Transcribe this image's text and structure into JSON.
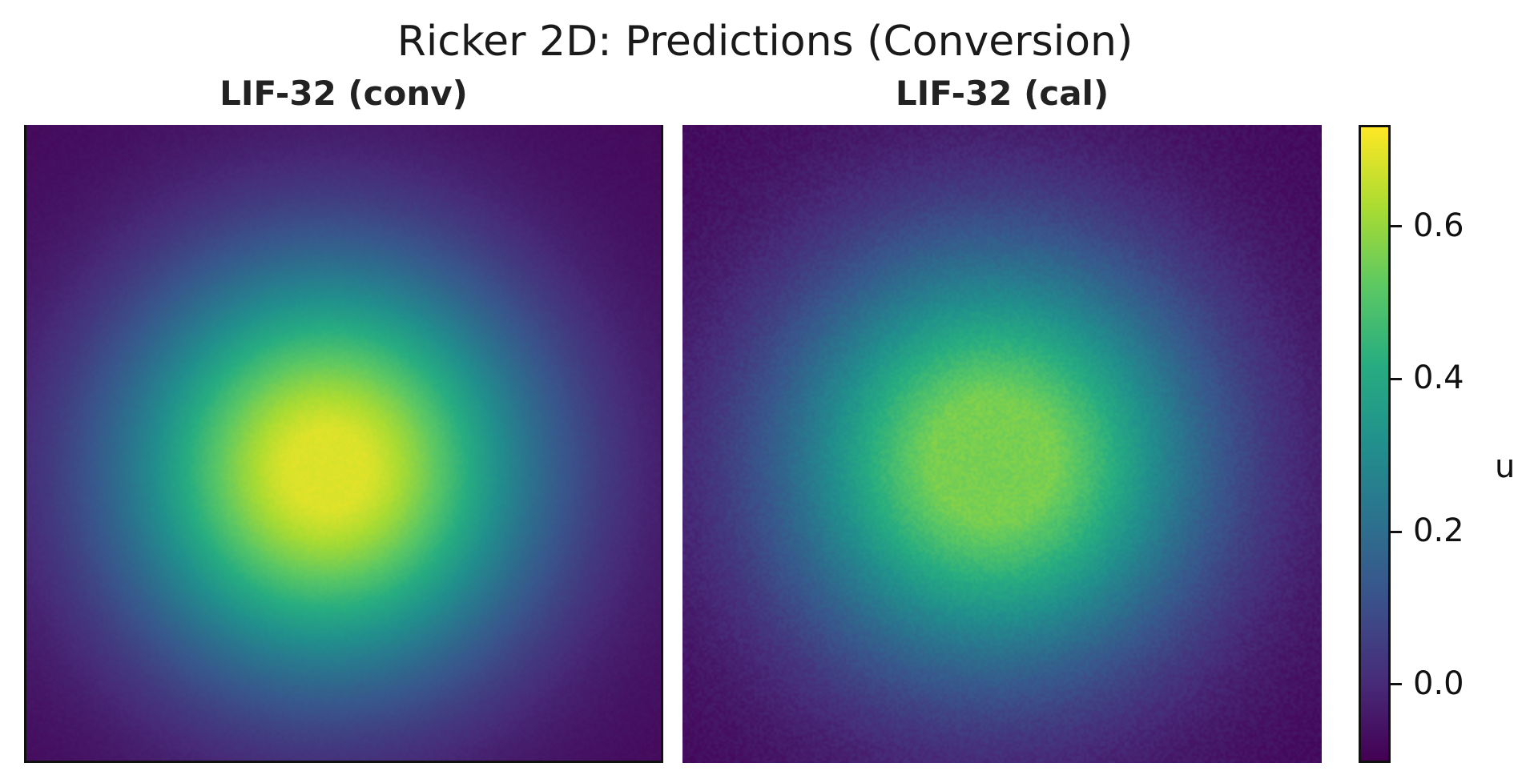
{
  "chart_data": {
    "type": "heatmap",
    "title": "Ricker 2D: Predictions (Conversion)",
    "colormap": "viridis",
    "color_range": [
      -0.1,
      0.73
    ],
    "colorbar": {
      "label": "u",
      "ticks": [
        0.0,
        0.2,
        0.4,
        0.6
      ],
      "tick_labels": [
        "0.0",
        "0.2",
        "0.4",
        "0.6"
      ]
    },
    "panels": [
      {
        "title": "LIF-32 (conv)",
        "field": {
          "center": [
            -0.05,
            -0.08
          ],
          "peak": 0.72,
          "width": 0.45,
          "clip_max": 0.69,
          "floor": -0.08,
          "noise": 0.008
        }
      },
      {
        "title": "LIF-32 (cal)",
        "field": {
          "center": [
            -0.03,
            -0.05
          ],
          "peak": 0.62,
          "width": 0.46,
          "clip_max": 0.56,
          "floor": -0.08,
          "noise": 0.02
        }
      }
    ],
    "xlabel": "",
    "ylabel": ""
  }
}
